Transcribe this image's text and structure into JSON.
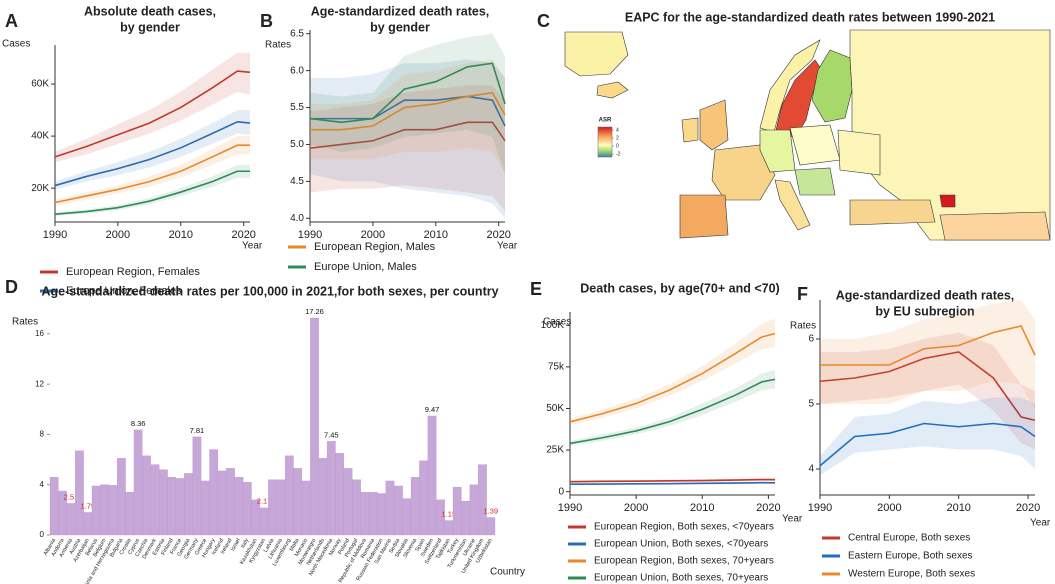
{
  "chart_data": [
    {
      "type": "line",
      "panel": "A",
      "title": [
        "Absolute death cases,",
        "by gender"
      ],
      "ylabel": "Cases",
      "xlabel": "Year",
      "x": [
        1990,
        1995,
        2000,
        2005,
        2010,
        2015,
        2019,
        2021
      ],
      "xlim": [
        1990,
        2021
      ],
      "xticks": [
        1990,
        2000,
        2010,
        2020
      ],
      "ylim": [
        7000,
        75000
      ],
      "yticks": [
        {
          "value": 20000,
          "label": "20K"
        },
        {
          "value": 40000,
          "label": "40K"
        },
        {
          "value": 60000,
          "label": "60K"
        }
      ],
      "series": [
        {
          "name": "European Region, Females",
          "color": "#c0392b",
          "values": [
            32000,
            36000,
            40500,
            45000,
            51000,
            58500,
            65000,
            64500
          ],
          "lower": [
            30000,
            33000,
            37000,
            41000,
            46000,
            52000,
            57000,
            56000
          ],
          "upper": [
            34000,
            39000,
            44500,
            50000,
            57000,
            65500,
            72000,
            72000
          ]
        },
        {
          "name": "Europe Union, Females",
          "color": "#2b6cb0",
          "values": [
            21000,
            24500,
            27500,
            31000,
            35500,
            41000,
            45500,
            45000
          ],
          "lower": [
            19500,
            22500,
            25000,
            28000,
            32000,
            37000,
            41000,
            40500
          ],
          "upper": [
            22500,
            26500,
            30000,
            34000,
            39000,
            45000,
            50000,
            50000
          ]
        },
        {
          "name": "European Region, Males",
          "color": "#e8892b",
          "values": [
            14500,
            17000,
            19500,
            22500,
            26500,
            32000,
            36500,
            36500
          ],
          "lower": [
            13500,
            15500,
            18000,
            20500,
            24000,
            29000,
            33000,
            33000
          ],
          "upper": [
            15500,
            18500,
            21000,
            24500,
            29000,
            35000,
            40000,
            40000
          ]
        },
        {
          "name": "Europe Union, Males",
          "color": "#2e8b57",
          "values": [
            10000,
            11000,
            12500,
            15000,
            18500,
            22500,
            26500,
            26500
          ],
          "lower": [
            9300,
            10200,
            11500,
            13800,
            17000,
            20500,
            24000,
            24000
          ],
          "upper": [
            10700,
            11800,
            13500,
            16200,
            20000,
            24500,
            29000,
            29000
          ]
        }
      ]
    },
    {
      "type": "line",
      "panel": "B",
      "title": [
        "Age-standardized death rates,",
        "by gender"
      ],
      "ylabel": "Rates",
      "xlabel": "Year",
      "x": [
        1990,
        1995,
        2000,
        2005,
        2010,
        2015,
        2019,
        2021
      ],
      "xlim": [
        1990,
        2021
      ],
      "xticks": [
        1990,
        2000,
        2010,
        2020
      ],
      "ylim": [
        3.95,
        6.55
      ],
      "yticks": [
        {
          "value": 4,
          "label": "4.0"
        },
        4.5,
        {
          "value": 5,
          "label": "5.0"
        },
        5.5,
        {
          "value": 6,
          "label": "6.0"
        },
        6.5
      ],
      "series": [
        {
          "color": "#c0392b",
          "values": [
            4.95,
            5.0,
            5.05,
            5.2,
            5.2,
            5.3,
            5.3,
            5.05
          ],
          "lower": [
            4.35,
            4.4,
            4.4,
            4.45,
            4.4,
            4.35,
            4.3,
            4.1
          ],
          "upper": [
            5.45,
            5.5,
            5.55,
            5.7,
            5.75,
            5.8,
            5.8,
            5.6
          ]
        },
        {
          "color": "#2b6cb0",
          "values": [
            5.35,
            5.35,
            5.35,
            5.6,
            5.6,
            5.65,
            5.6,
            5.25
          ],
          "lower": [
            4.6,
            4.5,
            4.5,
            4.4,
            4.35,
            4.3,
            4.2,
            4.0
          ],
          "upper": [
            5.9,
            5.9,
            5.95,
            6.1,
            6.1,
            6.15,
            6.1,
            5.9
          ]
        },
        {
          "color": "#e8892b",
          "values": [
            5.2,
            5.2,
            5.25,
            5.5,
            5.55,
            5.65,
            5.7,
            5.4
          ],
          "lower": [
            4.8,
            4.8,
            4.8,
            4.9,
            4.9,
            4.95,
            4.9,
            4.6
          ],
          "upper": [
            5.55,
            5.55,
            5.6,
            5.95,
            6.0,
            6.1,
            6.15,
            5.9
          ]
        },
        {
          "color": "#2e8b57",
          "values": [
            5.35,
            5.3,
            5.35,
            5.75,
            5.85,
            6.05,
            6.1,
            5.55
          ],
          "lower": [
            5.0,
            4.9,
            4.95,
            5.1,
            5.15,
            5.2,
            5.1,
            4.6
          ],
          "upper": [
            5.7,
            5.65,
            5.7,
            6.2,
            6.35,
            6.45,
            6.5,
            6.2
          ]
        }
      ]
    },
    {
      "type": "map",
      "panel": "C",
      "title": "EAPC for the age-standardized death rates between 1990-2021",
      "legend_title": "ASR",
      "legend_ticks": [
        4,
        2,
        0,
        -2
      ]
    },
    {
      "type": "bar",
      "panel": "D",
      "title": "Age-standardized death rates per 100,000 in 2021,for both sexes, per country",
      "ylabel": "Rates",
      "xlabel": "Country",
      "color": "#c7a6d8",
      "ylim": [
        0,
        17.5
      ],
      "yticks": [
        0,
        4,
        8,
        12,
        16
      ],
      "categories": [
        "Albania",
        "Andorra",
        "Armenia",
        "Austria",
        "Azerbaijan",
        "Belarus",
        "Belgium",
        "Bosnia and Herzegovina",
        "Bulgaria",
        "Croatia",
        "Cyprus",
        "Czechia",
        "Denmark",
        "Estonia",
        "Finland",
        "France",
        "Georgia",
        "Germany",
        "Greece",
        "Hungary",
        "Iceland",
        "Ireland",
        "Israel",
        "Italy",
        "Kazakhstan",
        "Kyrgyzstan",
        "Latvia",
        "Lithuania",
        "Luxembourg",
        "Malta",
        "Monaco",
        "Montenegro",
        "Netherlands",
        "North Macedonia",
        "Norway",
        "Poland",
        "Portugal",
        "Republic of Moldova",
        "Romania",
        "Russian Federation",
        "San Marino",
        "Serbia",
        "Slovakia",
        "Slovenia",
        "Spain",
        "Sweden",
        "Switzerland",
        "Tajikistan",
        "Turkey",
        "Turkmenistan",
        "Ukraine",
        "United Kingdom",
        "Uzbekistan"
      ],
      "values": [
        4.6,
        3.5,
        2.51,
        6.7,
        1.79,
        3.9,
        4.0,
        3.95,
        6.1,
        3.4,
        8.36,
        6.3,
        5.6,
        5.2,
        4.6,
        4.5,
        4.9,
        7.81,
        4.3,
        6.8,
        5.1,
        5.3,
        4.6,
        4.2,
        2.8,
        2.17,
        4.4,
        4.4,
        6.3,
        5.3,
        4.3,
        17.26,
        6.1,
        7.45,
        6.5,
        5.3,
        4.4,
        3.4,
        3.4,
        3.3,
        4.3,
        3.9,
        2.9,
        4.6,
        5.9,
        9.47,
        2.8,
        1.15,
        3.8,
        2.7,
        4.0,
        5.6,
        1.39
      ],
      "value_labels": [
        null,
        null,
        "2.51",
        null,
        "1.79",
        null,
        null,
        null,
        null,
        null,
        "8.36",
        null,
        null,
        null,
        null,
        null,
        null,
        "7.81",
        null,
        null,
        null,
        null,
        null,
        null,
        null,
        "2.17",
        null,
        null,
        null,
        null,
        null,
        "17.26",
        null,
        "7.45",
        null,
        null,
        null,
        null,
        null,
        null,
        null,
        null,
        null,
        null,
        null,
        "9.47",
        null,
        "1.15",
        null,
        null,
        null,
        null,
        "1.39"
      ],
      "label_colors": {
        "low": "#e02020",
        "high": "#111111"
      }
    },
    {
      "type": "line",
      "panel": "E",
      "title": [
        "Death cases, by age(70+ and <70)"
      ],
      "ylabel": "Cases",
      "xlabel": "Year",
      "x": [
        1990,
        1995,
        2000,
        2005,
        2010,
        2015,
        2019,
        2021
      ],
      "xlim": [
        1990,
        2021
      ],
      "xticks": [
        1990,
        2000,
        2010,
        2020
      ],
      "ylim": [
        -2000,
        108000
      ],
      "yticks": [
        0,
        {
          "value": 25000,
          "label": "25K"
        },
        {
          "value": 50000,
          "label": "50K"
        },
        {
          "value": 75000,
          "label": "75k"
        },
        {
          "value": 100000,
          "label": "100K"
        }
      ],
      "series": [
        {
          "name": "European Region, Both sexes, <70years",
          "color": "#c0392b",
          "values": [
            6000,
            6200,
            6300,
            6500,
            6700,
            7000,
            7300,
            7200
          ],
          "lower": [
            5300,
            5500,
            5600,
            5800,
            6000,
            6200,
            6500,
            6400
          ],
          "upper": [
            6700,
            6900,
            7000,
            7200,
            7400,
            7800,
            8100,
            8000
          ]
        },
        {
          "name": "European Union, Both sexes, <70years",
          "color": "#2b6cb0",
          "values": [
            4500,
            4600,
            4700,
            4800,
            5000,
            5200,
            5400,
            5300
          ],
          "lower": [
            4000,
            4100,
            4200,
            4300,
            4400,
            4600,
            4800,
            4700
          ],
          "upper": [
            5000,
            5100,
            5200,
            5300,
            5600,
            5800,
            6000,
            5900
          ]
        },
        {
          "name": "European Region, Both sexes, 70+years",
          "color": "#e8892b",
          "values": [
            42000,
            47000,
            53000,
            61000,
            71000,
            83000,
            93000,
            95000
          ],
          "lower": [
            40000,
            44500,
            50000,
            57500,
            66500,
            77000,
            85500,
            87000
          ],
          "upper": [
            44000,
            49500,
            56000,
            64500,
            75500,
            89000,
            101000,
            104000
          ]
        },
        {
          "name": "European Union, Both sexes, 70+years",
          "color": "#2e8b57",
          "values": [
            29000,
            32500,
            36500,
            42000,
            49500,
            58000,
            66000,
            67500
          ],
          "lower": [
            27500,
            30500,
            34500,
            39500,
            46000,
            54000,
            61000,
            62000
          ],
          "upper": [
            30500,
            34500,
            38500,
            44500,
            53000,
            62000,
            71000,
            73000
          ]
        }
      ]
    },
    {
      "type": "line",
      "panel": "F",
      "title": [
        "Age-standardized death rates,",
        "by EU subregion"
      ],
      "ylabel": "Rates",
      "xlabel": "Year",
      "x": [
        1990,
        1995,
        2000,
        2005,
        2010,
        2015,
        2019,
        2021
      ],
      "xlim": [
        1990,
        2021
      ],
      "xticks": [
        1990,
        2000,
        2010,
        2020
      ],
      "ylim": [
        3.6,
        6.6
      ],
      "yticks": [
        4,
        5,
        6
      ],
      "series": [
        {
          "name": "Central Europe, Both sexes",
          "color": "#c0392b",
          "values": [
            5.35,
            5.4,
            5.5,
            5.7,
            5.8,
            5.4,
            4.8,
            4.75
          ],
          "lower": [
            5.0,
            5.05,
            5.1,
            5.2,
            5.3,
            4.9,
            4.4,
            4.3
          ],
          "upper": [
            5.8,
            5.8,
            5.85,
            6.0,
            6.1,
            5.9,
            5.3,
            5.2
          ]
        },
        {
          "name": "Eastern Europe, Both sexes",
          "color": "#1f6fbf",
          "values": [
            4.05,
            4.5,
            4.55,
            4.7,
            4.65,
            4.7,
            4.65,
            4.5
          ],
          "lower": [
            3.9,
            4.25,
            4.3,
            4.35,
            4.3,
            4.3,
            4.2,
            4.0
          ],
          "upper": [
            4.2,
            4.8,
            4.85,
            5.05,
            5.0,
            5.1,
            5.1,
            5.0
          ]
        },
        {
          "name": "Western Europe, Both sexes",
          "color": "#e8892b",
          "values": [
            5.6,
            5.6,
            5.6,
            5.85,
            5.9,
            6.1,
            6.2,
            5.75
          ],
          "lower": [
            5.0,
            5.0,
            5.0,
            5.2,
            5.2,
            5.35,
            5.3,
            4.9
          ],
          "upper": [
            6.0,
            6.0,
            6.1,
            6.3,
            6.4,
            6.55,
            6.6,
            6.3
          ]
        }
      ]
    }
  ]
}
